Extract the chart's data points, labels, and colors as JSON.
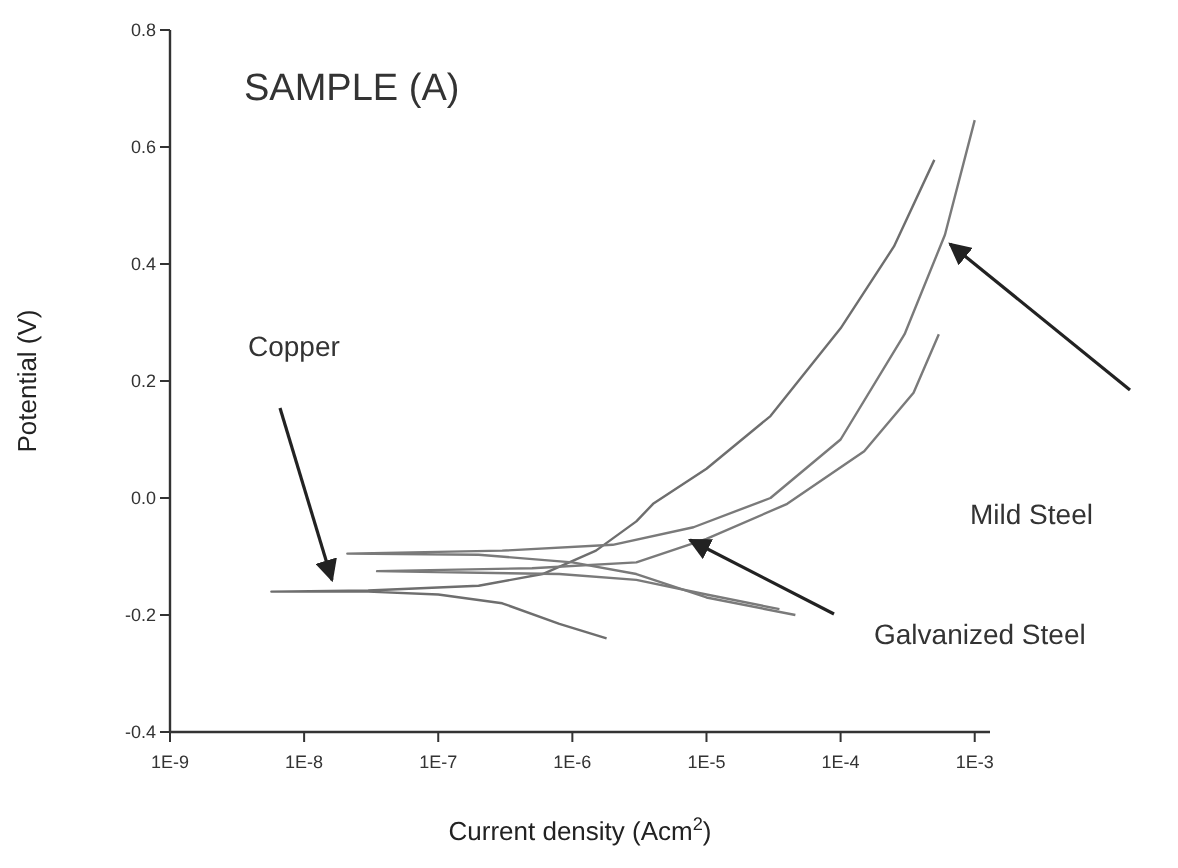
{
  "chart_data": {
    "type": "line",
    "title": "SAMPLE (A)",
    "xlabel": "Current density (Acm$^{2}$)",
    "ylabel": "Potential (V)",
    "log": "x",
    "grid": false,
    "marker": "none",
    "line_style": "solid",
    "xlim": [
      1e-09,
      0.0013
    ],
    "ylim": [
      -0.4,
      0.8
    ],
    "xticks": [
      {
        "value": 1e-09,
        "label": "1E-9"
      },
      {
        "value": 1e-08,
        "label": "1E-8"
      },
      {
        "value": 1e-07,
        "label": "1E-7"
      },
      {
        "value": 1e-06,
        "label": "1E-6"
      },
      {
        "value": 1e-05,
        "label": "1E-5"
      },
      {
        "value": 0.0001,
        "label": "1E-4"
      },
      {
        "value": 0.001,
        "label": "1E-3"
      }
    ],
    "yticks": [
      {
        "value": -0.4,
        "label": "-0.4"
      },
      {
        "value": -0.2,
        "label": "-0.2"
      },
      {
        "value": 0,
        "label": "0.0"
      },
      {
        "value": 0.2,
        "label": "0.2"
      },
      {
        "value": 0.4,
        "label": "0.4"
      },
      {
        "value": 0.6,
        "label": "0.6"
      },
      {
        "value": 0.8,
        "label": "0.8"
      }
    ],
    "series": [
      {
        "color": "#6e6e6e",
        "x": [
          1.8e-06,
          8e-07,
          3e-07,
          1e-07,
          3e-08,
          5.7e-09,
          3e-08,
          2e-07,
          6e-07,
          1.5e-06,
          3e-06,
          4e-06,
          1e-05,
          3e-05,
          0.0001,
          0.00025,
          0.0005
        ],
        "values": [
          -0.24,
          -0.215,
          -0.18,
          -0.165,
          -0.16,
          -0.16,
          -0.158,
          -0.15,
          -0.13,
          -0.09,
          -0.04,
          -0.01,
          0.05,
          0.14,
          0.29,
          0.43,
          0.578
        ]
      },
      {
        "color": "#7a7a7a",
        "x": [
          4.6e-05,
          1e-05,
          3e-06,
          1e-06,
          2e-07,
          2.1e-08,
          3e-07,
          2e-06,
          8e-06,
          3e-05,
          0.0001,
          0.0003,
          0.0006,
          0.001
        ],
        "values": [
          -0.2,
          -0.17,
          -0.13,
          -0.11,
          -0.097,
          -0.095,
          -0.09,
          -0.08,
          -0.05,
          0.0,
          0.1,
          0.28,
          0.45,
          0.646
        ]
      },
      {
        "color": "#7a7a7a",
        "x": [
          3.5e-05,
          1e-05,
          3e-06,
          8e-07,
          3.5e-08,
          5e-07,
          3e-06,
          1e-05,
          4e-05,
          0.00015,
          0.00035,
          0.00054
        ],
        "values": [
          -0.19,
          -0.165,
          -0.14,
          -0.13,
          -0.125,
          -0.12,
          -0.11,
          -0.07,
          -0.01,
          0.08,
          0.18,
          0.28
        ]
      }
    ],
    "annotations": [
      "Copper",
      "Mild Steel",
      "Galvanized Steel"
    ]
  }
}
